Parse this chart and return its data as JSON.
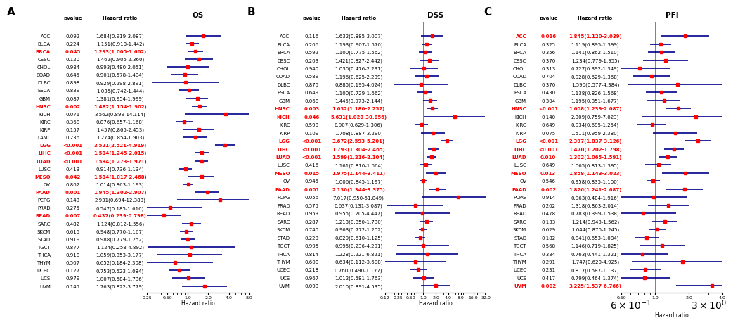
{
  "panels": [
    {
      "label": "A",
      "title": "OS",
      "categories": [
        "ACC",
        "BLCA",
        "BRCA",
        "CESC",
        "CHOL",
        "COAD",
        "DLBC",
        "ESCA",
        "GBM",
        "HNSC",
        "KICH",
        "KIRC",
        "KIRP",
        "LAML",
        "LGG",
        "LIHC",
        "LUAD",
        "LUSC",
        "MESO",
        "OV",
        "PAAD",
        "PCPG",
        "PRAD",
        "READ",
        "SARC",
        "SKCM",
        "STAD",
        "TGCT",
        "THCA",
        "THYM",
        "UCEC",
        "UCS",
        "UVM"
      ],
      "pvalues": [
        "0.092",
        "0.224",
        "0.045",
        "0.120",
        "0.984",
        "0.645",
        "0.898",
        "0.839",
        "0.087",
        "0.002",
        "0.071",
        "0.368",
        "0.157",
        "0.236",
        "<0.001",
        "<0.001",
        "<0.001",
        "0.413",
        "0.042",
        "0.862",
        "0.001",
        "0.143",
        "0.275",
        "0.007",
        "0.482",
        "0.615",
        "0.919",
        "0.877",
        "0.918",
        "0.507",
        "0.127",
        "0.979",
        "0.145"
      ],
      "hr_text": [
        "1.684(0.919-3.087)",
        "1.151(0.918-1.442)",
        "1.293(1.005-1.662)",
        "1.462(0.905-2.360)",
        "0.993(0.480-2.051)",
        "0.901(0.578-1.404)",
        "0.929(0.298-2.891)",
        "1.035(0.742-1.444)",
        "1.381(0.954-1.999)",
        "1.482(1.154-1.902)",
        "3.562(0.899-14.114)",
        "0.876(0.657-1.168)",
        "1.457(0.865-2.453)",
        "1.274(0.854-1.903)",
        "3.521(2.521-4.919)",
        "1.584(1.245-2.015)",
        "1.584(1.273-1.971)",
        "0.914(0.736-1.134)",
        "1.584(1.017-2.468)",
        "1.014(0.863-1.193)",
        "1.945(1.302-2.907)",
        "2.931(0.694-12.383)",
        "0.547(0.185-1.616)",
        "0.437(0.239-0.798)",
        "1.124(0.812-1.556)",
        "0.948(0.770-1.167)",
        "0.988(0.779-1.252)",
        "1.124(0.258-4.892)",
        "1.059(0.353-3.177)",
        "0.652(0.184-2.308)",
        "0.753(0.523-1.084)",
        "1.007(0.584-1.736)",
        "1.763(0.822-3.779)"
      ],
      "hr": [
        1.684,
        1.151,
        1.293,
        1.462,
        0.993,
        0.901,
        0.929,
        1.035,
        1.381,
        1.482,
        3.562,
        0.876,
        1.457,
        1.274,
        3.521,
        1.584,
        1.584,
        0.914,
        1.584,
        1.014,
        1.945,
        2.931,
        0.547,
        0.437,
        1.124,
        0.948,
        0.988,
        1.124,
        1.059,
        0.652,
        0.753,
        1.007,
        1.763
      ],
      "lo": [
        0.919,
        0.918,
        1.005,
        0.905,
        0.48,
        0.578,
        0.298,
        0.742,
        0.954,
        1.154,
        0.899,
        0.657,
        0.865,
        0.854,
        2.521,
        1.245,
        1.273,
        0.736,
        1.017,
        0.863,
        1.302,
        0.694,
        0.185,
        0.239,
        0.812,
        0.77,
        0.779,
        0.258,
        0.353,
        0.184,
        0.523,
        0.584,
        0.822
      ],
      "hi": [
        3.087,
        1.442,
        1.662,
        2.36,
        2.051,
        1.404,
        2.891,
        1.444,
        1.999,
        1.902,
        14.114,
        1.168,
        2.453,
        1.903,
        4.919,
        2.015,
        1.971,
        1.134,
        2.468,
        1.193,
        2.907,
        12.383,
        1.616,
        0.798,
        1.556,
        1.167,
        1.252,
        4.892,
        3.177,
        2.308,
        1.084,
        1.736,
        3.779
      ],
      "sig": [
        false,
        false,
        true,
        false,
        false,
        false,
        false,
        false,
        false,
        true,
        false,
        false,
        false,
        false,
        true,
        true,
        true,
        false,
        true,
        false,
        true,
        false,
        false,
        true,
        false,
        false,
        false,
        false,
        false,
        false,
        false,
        false,
        false
      ],
      "xmin": 0.25,
      "xmax": 8.0,
      "xticks": [
        0.25,
        0.5,
        1.0,
        2.0,
        4.0,
        8.0
      ],
      "xticklabels": [
        "0.25",
        "0.50",
        "1.0",
        "2.0",
        "4.0",
        "8.0"
      ]
    },
    {
      "label": "B",
      "title": "DSS",
      "categories": [
        "ACC",
        "BLCA",
        "BRCA",
        "CESC",
        "CHOL",
        "COAD",
        "DLBC",
        "ESCA",
        "GBM",
        "HNSC",
        "KICH",
        "KIRC",
        "KIRP",
        "LGG",
        "LIHC",
        "LUAD",
        "LUSC",
        "MESO",
        "OV",
        "PAAD",
        "PCPG",
        "PRAD",
        "READ",
        "SARC",
        "SKCM",
        "STAD",
        "TGCT",
        "THCA",
        "THYM",
        "UCEC",
        "UCS",
        "UVM"
      ],
      "pvalues": [
        "0.116",
        "0.206",
        "0.592",
        "0.203",
        "0.940",
        "0.589",
        "0.875",
        "0.649",
        "0.068",
        "0.003",
        "0.046",
        "0.598",
        "0.109",
        "<0.001",
        "<0.001",
        "<0.001",
        "0.416",
        "0.015",
        "0.945",
        "0.001",
        "0.056",
        "0.575",
        "0.953",
        "0.287",
        "0.740",
        "0.228",
        "0.995",
        "0.814",
        "0.608",
        "0.218",
        "0.967",
        "0.093"
      ],
      "hr_text": [
        "1.632(0.885-3.007)",
        "1.193(0.907-1.570)",
        "1.100(0.775-1.562)",
        "1.421(0.827-2.442)",
        "1.030(0.476-2.231)",
        "1.196(0.625-2.289)",
        "0.885(0.195-4.024)",
        "1.100(0.729-1.662)",
        "1.445(0.973-2.144)",
        "1.632(1.180-2.257)",
        "5.631(1.028-30.856)",
        "0.907(0.629-1.306)",
        "1.708(0.887-3.290)",
        "3.672(2.593-5.201)",
        "1.793(1.304-2.465)",
        "1.599(1.216-2.104)",
        "1.161(0.810-1.664)",
        "1.975(1.144-3.411)",
        "1.006(0.845-1.197)",
        "2.130(1.344-3.375)",
        "7.017(0.950-51.849)",
        "0.637(0.131-3.087)",
        "0.955(0.205-4.447)",
        "1.213(0.850-1.730)",
        "0.963(0.772-1.202)",
        "0.829(0.610-1.125)",
        "0.995(0.236-4.201)",
        "1.228(0.221-6.821)",
        "0.634(0.112-3.608)",
        "0.760(0.490-1.177)",
        "1.012(0.581-1.763)",
        "2.010(0.891-4.535)"
      ],
      "hr": [
        1.632,
        1.193,
        1.1,
        1.421,
        1.03,
        1.196,
        0.885,
        1.1,
        1.445,
        1.632,
        5.631,
        0.907,
        1.708,
        3.672,
        1.793,
        1.599,
        1.161,
        1.975,
        1.006,
        2.13,
        7.017,
        0.637,
        0.955,
        1.213,
        0.963,
        0.829,
        0.995,
        1.228,
        0.634,
        0.76,
        1.012,
        2.01
      ],
      "lo": [
        0.885,
        0.907,
        0.775,
        0.827,
        0.476,
        0.625,
        0.195,
        0.729,
        0.973,
        1.18,
        1.028,
        0.629,
        0.887,
        2.593,
        1.304,
        1.216,
        0.81,
        1.144,
        0.845,
        1.344,
        0.95,
        0.131,
        0.205,
        0.85,
        0.772,
        0.61,
        0.236,
        0.221,
        0.112,
        0.49,
        0.581,
        0.891
      ],
      "hi": [
        3.007,
        1.57,
        1.562,
        2.442,
        2.231,
        2.289,
        4.024,
        1.662,
        2.144,
        2.257,
        30.856,
        1.306,
        3.29,
        5.201,
        2.465,
        2.104,
        1.664,
        3.411,
        1.197,
        3.375,
        51.849,
        3.087,
        4.447,
        1.73,
        1.202,
        1.125,
        4.201,
        6.821,
        3.608,
        1.177,
        1.763,
        4.535
      ],
      "sig": [
        false,
        false,
        false,
        false,
        false,
        false,
        false,
        false,
        false,
        true,
        true,
        false,
        false,
        true,
        true,
        true,
        false,
        true,
        false,
        true,
        false,
        false,
        false,
        false,
        false,
        false,
        false,
        false,
        false,
        false,
        false,
        false
      ],
      "xmin": 0.12,
      "xmax": 32.0,
      "xticks": [
        0.12,
        0.25,
        0.5,
        1.0,
        2.0,
        4.0,
        8.0,
        16.0,
        32.0
      ],
      "xticklabels": [
        "0.12",
        "0.25",
        "0.50",
        "1.0",
        "2.0",
        "4.0",
        "8.0",
        "16.0",
        "32.0"
      ]
    },
    {
      "label": "C",
      "title": "PFI",
      "categories": [
        "ACC",
        "BLCA",
        "BRCA",
        "CESC",
        "CHOL",
        "COAD",
        "DLBC",
        "ESCA",
        "GBM",
        "HNSC",
        "KICH",
        "KIRC",
        "KIRP",
        "LGG",
        "LIHC",
        "LUAD",
        "LUSC",
        "MESO",
        "OV",
        "PAAD",
        "PCPG",
        "PRAD",
        "READ",
        "SARC",
        "SKCM",
        "STAD",
        "TGCT",
        "THCA",
        "THYM",
        "UCEC",
        "UCS",
        "UVM"
      ],
      "pvalues": [
        "0.016",
        "0.325",
        "0.356",
        "0.370",
        "0.313",
        "0.704",
        "0.370",
        "0.430",
        "0.304",
        "<0.001",
        "0.140",
        "0.649",
        "0.075",
        "<0.001",
        "<0.001",
        "0.010",
        "0.649",
        "0.013",
        "0.546",
        "0.002",
        "0.914",
        "0.202",
        "0.478",
        "0.133",
        "0.629",
        "0.182",
        "0.568",
        "0.334",
        "0.291",
        "0.231",
        "0.417",
        "0.002"
      ],
      "hr_text": [
        "1.845(1.120-3.039)",
        "1.119(0.895-1.399)",
        "1.141(0.862-1.510)",
        "1.234(0.779-1.955)",
        "0.727(0.392-1.349)",
        "0.928(0.629-1.368)",
        "1.590(0.577-4.384)",
        "1.138(0.826-1.568)",
        "1.195(0.851-1.677)",
        "1.608(1.239-2.087)",
        "2.309(0.759-7.023)",
        "0.934(0.695-1.254)",
        "1.511(0.959-2.380)",
        "2.397(1.837-3.126)",
        "1.470(1.202-1.798)",
        "1.302(1.065-1.591)",
        "1.065(0.813-1.395)",
        "1.858(1.143-3.023)",
        "0.958(0.835-1.100)",
        "1.826(1.241-2.687)",
        "0.963(0.484-1.916)",
        "1.318(0.863-2.014)",
        "0.783(0.399-1.538)",
        "1.214(0.943-1.562)",
        "1.044(0.876-1.245)",
        "0.841(0.653-1.084)",
        "1.146(0.719-1.825)",
        "0.763(0.441-1.321)",
        "1.747(0.620-4.925)",
        "0.817(0.587-1.137)",
        "0.799(0.464-1.374)",
        "3.225(1.537-6.766)"
      ],
      "hr": [
        1.845,
        1.119,
        1.141,
        1.234,
        0.727,
        0.928,
        1.59,
        1.138,
        1.195,
        1.608,
        2.309,
        0.934,
        1.511,
        2.397,
        1.47,
        1.302,
        1.065,
        1.858,
        0.958,
        1.826,
        0.963,
        1.318,
        0.783,
        1.214,
        1.044,
        0.841,
        1.146,
        0.763,
        1.747,
        0.817,
        0.799,
        3.225
      ],
      "lo": [
        1.12,
        0.895,
        0.862,
        0.779,
        0.392,
        0.629,
        0.577,
        0.826,
        0.851,
        1.239,
        0.759,
        0.695,
        0.959,
        1.837,
        1.202,
        1.065,
        0.813,
        1.143,
        0.835,
        1.241,
        0.484,
        0.863,
        0.399,
        0.943,
        0.876,
        0.653,
        0.719,
        0.441,
        0.62,
        0.587,
        0.464,
        1.537
      ],
      "hi": [
        3.039,
        1.399,
        1.51,
        1.955,
        1.349,
        1.368,
        4.384,
        1.568,
        1.677,
        2.087,
        7.023,
        1.254,
        2.38,
        3.126,
        1.798,
        1.591,
        1.395,
        3.023,
        1.1,
        2.687,
        1.916,
        2.014,
        1.538,
        1.562,
        1.245,
        1.084,
        1.825,
        1.321,
        4.925,
        1.137,
        1.374,
        6.766
      ],
      "sig": [
        true,
        false,
        false,
        false,
        false,
        false,
        false,
        false,
        false,
        true,
        false,
        false,
        false,
        true,
        true,
        true,
        false,
        true,
        false,
        true,
        false,
        false,
        false,
        false,
        false,
        false,
        false,
        false,
        false,
        false,
        false,
        true
      ],
      "xmin": 0.5,
      "xmax": 4.0,
      "xticks": [
        0.5,
        1.0,
        2.0,
        4.0
      ],
      "xticklabels": [
        "0.50",
        "1.0",
        "2.0",
        "4.0"
      ]
    }
  ],
  "sig_color": "#FF0000",
  "nonsig_color": "#000000",
  "dot_color": "#FF0000",
  "line_color": "#00008B",
  "dot_size": 20,
  "line_width": 1.2,
  "cat_fontsize": 5.0,
  "pval_fontsize": 5.0,
  "hr_text_fontsize": 5.0,
  "xlabel_fontsize": 5.5,
  "xtick_fontsize": 4.5,
  "title_fontsize": 7.5,
  "label_fontsize": 11
}
